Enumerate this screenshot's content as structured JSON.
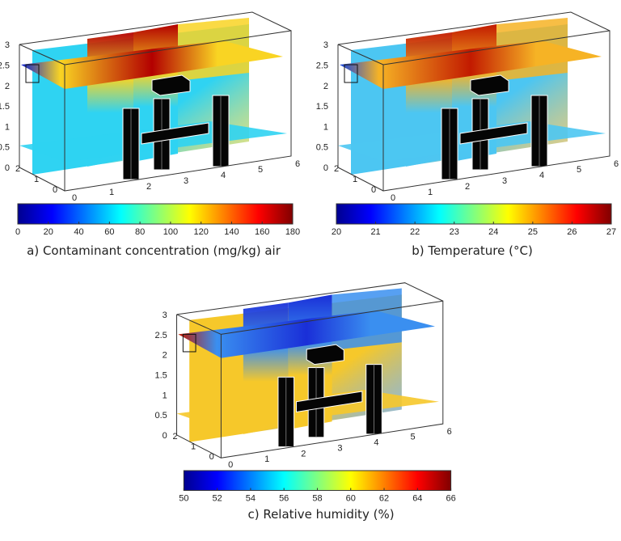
{
  "panels": [
    {
      "id": "a",
      "caption": "a) Contaminant concentration (mg/kg) air",
      "colorbar_ticks": [
        "0",
        "20",
        "40",
        "60",
        "80",
        "100",
        "120",
        "140",
        "160",
        "180"
      ],
      "colormap": "jet",
      "field_colors": {
        "wall": "#2fd3f2",
        "ceiling": "#f9d423",
        "hot": "#b30000",
        "cold": "#0a1fd0"
      }
    },
    {
      "id": "b",
      "caption": "b) Temperature (°C)",
      "colorbar_ticks": [
        "20",
        "21",
        "22",
        "23",
        "24",
        "25",
        "26",
        "27"
      ],
      "colormap": "jet",
      "field_colors": {
        "wall": "#4cc6f2",
        "ceiling": "#f6b325",
        "hot": "#c21a00",
        "cold": "#1545e0"
      }
    },
    {
      "id": "c",
      "caption": "c) Relative humidity (%)",
      "colorbar_ticks": [
        "50",
        "52",
        "54",
        "56",
        "58",
        "60",
        "62",
        "64",
        "66"
      ],
      "colormap": "jet",
      "field_colors": {
        "wall": "#f6c82a",
        "ceiling": "#3a8ff0",
        "hot": "#1a2fd8",
        "cold": "#c01800"
      }
    }
  ],
  "axes": {
    "z_ticks": [
      "0",
      "0.5",
      "1",
      "1.5",
      "2",
      "2.5",
      "3"
    ],
    "y_ticks": [
      "0",
      "1",
      "2"
    ],
    "x_ticks": [
      "0",
      "1",
      "2",
      "3",
      "4",
      "5",
      "6"
    ]
  }
}
